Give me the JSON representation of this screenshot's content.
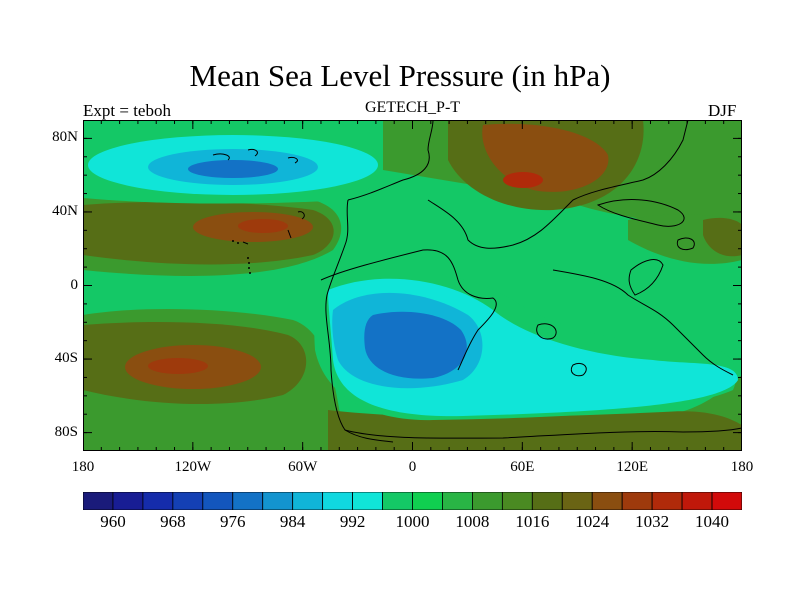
{
  "title": "Mean Sea Level Pressure (in hPa)",
  "left_string": "Expt = teboh",
  "center_string": "GETECH_P-T",
  "right_string": "DJF",
  "map": {
    "projection": "cylindrical equidistant",
    "lon_range": [
      -180,
      180
    ],
    "lat_range": [
      -90,
      90
    ],
    "lat_ticks": [
      {
        "value": 80,
        "label": "80N"
      },
      {
        "value": 40,
        "label": "40N"
      },
      {
        "value": 0,
        "label": "0"
      },
      {
        "value": -40,
        "label": "40S"
      },
      {
        "value": -80,
        "label": "80S"
      }
    ],
    "lon_ticks": [
      {
        "value": -180,
        "label": "180"
      },
      {
        "value": -120,
        "label": "120W"
      },
      {
        "value": -60,
        "label": "60W"
      },
      {
        "value": 0,
        "label": "0"
      },
      {
        "value": 60,
        "label": "60E"
      },
      {
        "value": 120,
        "label": "120E"
      },
      {
        "value": 180,
        "label": "180"
      }
    ]
  },
  "colorbar": {
    "levels": [
      956,
      960,
      964,
      968,
      972,
      976,
      980,
      984,
      988,
      992,
      996,
      1000,
      1004,
      1008,
      1012,
      1016,
      1020,
      1024,
      1028,
      1032,
      1036,
      1040
    ],
    "labels": [
      "960",
      "968",
      "976",
      "984",
      "992",
      "1000",
      "1008",
      "1016",
      "1024",
      "1032",
      "1040"
    ],
    "colors": [
      "#1a1b7a",
      "#181d94",
      "#152cab",
      "#1440b4",
      "#1356bd",
      "#1372c6",
      "#1394cf",
      "#10b5d8",
      "#10d8e0",
      "#10e5d8",
      "#14c866",
      "#10cf50",
      "#29b545",
      "#3b9a2e",
      "#4a8a22",
      "#566e16",
      "#6a6414",
      "#8a4e10",
      "#9e3a0c",
      "#b02a0a",
      "#c0180a",
      "#d20a0a"
    ]
  },
  "field_colors": {
    "ocean_high": "#3b9a2e",
    "subtropical_high": "#566e16",
    "high_core": "#8a4e10",
    "high_peak": "#b02a0a",
    "low_1000": "#14c866",
    "low_996": "#10e5d8",
    "low_992": "#10b5d8",
    "low_988": "#1394cf",
    "low_984": "#1372c6",
    "coast": "#000000"
  }
}
